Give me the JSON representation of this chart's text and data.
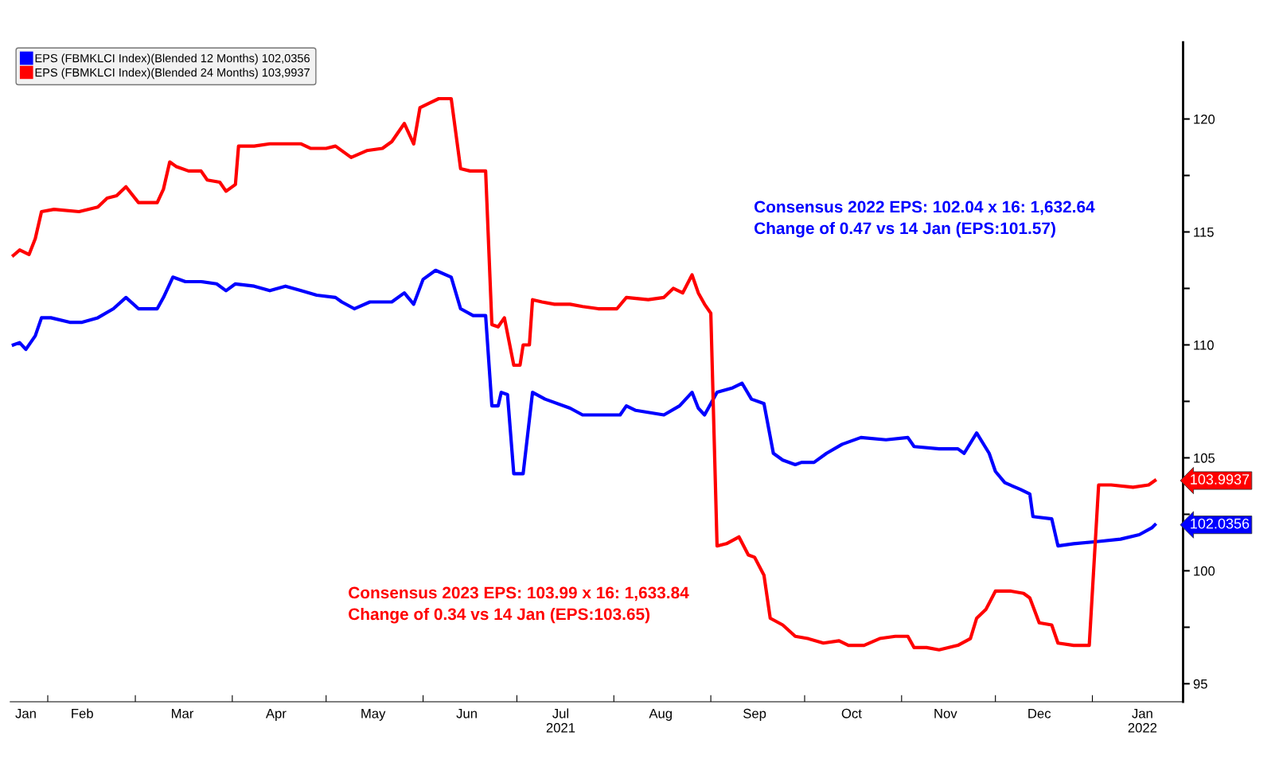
{
  "chart_data": {
    "type": "line",
    "legend": "top left",
    "grid": false,
    "marker": "none",
    "line_style": "solid",
    "xlim": [
      "2021-01-20",
      "2022-01-30"
    ],
    "ylim": [
      94.2,
      123.4
    ],
    "yticks": [
      95,
      {
        "value": 97.5,
        "label": null
      },
      100,
      {
        "value": 102.5,
        "label": null
      },
      105,
      {
        "value": 107.5,
        "label": null
      },
      110,
      {
        "value": 112.5,
        "label": null
      },
      115,
      {
        "value": 117.5,
        "label": null
      },
      120
    ],
    "xticks": [
      {
        "value": "2021-01-25",
        "label": "Jan"
      },
      {
        "value": "2021-02-01",
        "label": null
      },
      {
        "value": "2021-02-12",
        "label": "Feb"
      },
      {
        "value": "2021-03-01",
        "label": null
      },
      {
        "value": "2021-03-16",
        "label": "Mar"
      },
      {
        "value": "2021-04-01",
        "label": null
      },
      {
        "value": "2021-04-15",
        "label": "Apr"
      },
      {
        "value": "2021-05-01",
        "label": null
      },
      {
        "value": "2021-05-16",
        "label": "May"
      },
      {
        "value": "2021-06-01",
        "label": null
      },
      {
        "value": "2021-06-15",
        "label": "Jun"
      },
      {
        "value": "2021-07-01",
        "label": null
      },
      {
        "value": "2021-07-15",
        "label": "Jul\n2021"
      },
      {
        "value": "2021-08-01",
        "label": null
      },
      {
        "value": "2021-08-16",
        "label": "Aug"
      },
      {
        "value": "2021-09-01",
        "label": null
      },
      {
        "value": "2021-09-15",
        "label": "Sep"
      },
      {
        "value": "2021-10-01",
        "label": null
      },
      {
        "value": "2021-10-16",
        "label": "Oct"
      },
      {
        "value": "2021-11-01",
        "label": null
      },
      {
        "value": "2021-11-15",
        "label": "Nov"
      },
      {
        "value": "2021-12-01",
        "label": null
      },
      {
        "value": "2021-12-15",
        "label": "Dec"
      },
      {
        "value": "2022-01-01",
        "label": null
      },
      {
        "value": "2022-01-17",
        "label": "Jan\n2022"
      }
    ],
    "series": [
      {
        "name": "EPS (FBMKLCI Index)(Blended 12 Months) 102,0356",
        "color": "#0000ff",
        "x": [
          "2021-01-21",
          "2021-01-23",
          "2021-01-25",
          "2021-01-28",
          "2021-01-30",
          "2021-02-02",
          "2021-02-08",
          "2021-02-12",
          "2021-02-17",
          "2021-02-22",
          "2021-02-26",
          "2021-03-02",
          "2021-03-08",
          "2021-03-10",
          "2021-03-13",
          "2021-03-17",
          "2021-03-22",
          "2021-03-27",
          "2021-03-30",
          "2021-04-02",
          "2021-04-08",
          "2021-04-13",
          "2021-04-18",
          "2021-04-23",
          "2021-04-28",
          "2021-05-04",
          "2021-05-06",
          "2021-05-10",
          "2021-05-15",
          "2021-05-22",
          "2021-05-26",
          "2021-05-29",
          "2021-06-01",
          "2021-06-05",
          "2021-06-10",
          "2021-06-13",
          "2021-06-17",
          "2021-06-21",
          "2021-06-23",
          "2021-06-25",
          "2021-06-26",
          "2021-06-28",
          "2021-06-30",
          "2021-07-03",
          "2021-07-06",
          "2021-07-10",
          "2021-07-18",
          "2021-07-22",
          "2021-08-03",
          "2021-08-05",
          "2021-08-08",
          "2021-08-17",
          "2021-08-22",
          "2021-08-26",
          "2021-08-28",
          "2021-08-30",
          "2021-09-03",
          "2021-09-08",
          "2021-09-11",
          "2021-09-14",
          "2021-09-18",
          "2021-09-21",
          "2021-09-24",
          "2021-09-28",
          "2021-09-30",
          "2021-10-04",
          "2021-10-08",
          "2021-10-13",
          "2021-10-19",
          "2021-10-27",
          "2021-11-03",
          "2021-11-05",
          "2021-11-13",
          "2021-11-19",
          "2021-11-21",
          "2021-11-25",
          "2021-11-29",
          "2021-12-01",
          "2021-12-04",
          "2021-12-09",
          "2021-12-12",
          "2021-12-13",
          "2021-12-19",
          "2021-12-21",
          "2021-12-26",
          "2022-01-03",
          "2022-01-10",
          "2022-01-16",
          "2022-01-20",
          "2022-01-21"
        ],
        "values": [
          110.0,
          110.1,
          109.8,
          110.4,
          111.2,
          111.2,
          111.0,
          111.0,
          111.2,
          111.6,
          112.1,
          111.6,
          111.6,
          112.1,
          113.0,
          112.8,
          112.8,
          112.7,
          112.4,
          112.7,
          112.6,
          112.4,
          112.6,
          112.4,
          112.2,
          112.1,
          111.9,
          111.6,
          111.9,
          111.9,
          112.3,
          111.8,
          112.9,
          113.3,
          113.0,
          111.6,
          111.3,
          111.3,
          107.3,
          107.3,
          107.9,
          107.8,
          104.3,
          104.3,
          107.9,
          107.6,
          107.2,
          106.9,
          106.9,
          107.3,
          107.1,
          106.9,
          107.3,
          107.9,
          107.2,
          106.9,
          107.9,
          108.1,
          108.3,
          107.6,
          107.4,
          105.2,
          104.9,
          104.7,
          104.8,
          104.8,
          105.2,
          105.6,
          105.9,
          105.8,
          105.9,
          105.5,
          105.4,
          105.4,
          105.2,
          106.1,
          105.2,
          104.4,
          103.9,
          103.6,
          103.4,
          102.4,
          102.3,
          101.1,
          101.2,
          101.3,
          101.4,
          101.6,
          101.9,
          102.0356
        ]
      },
      {
        "name": "EPS (FBMKLCI Index)(Blended 24 Months) 103,9937",
        "color": "#ff0000",
        "x": [
          "2021-01-21",
          "2021-01-23",
          "2021-01-26",
          "2021-01-28",
          "2021-01-30",
          "2021-02-03",
          "2021-02-11",
          "2021-02-17",
          "2021-02-20",
          "2021-02-23",
          "2021-02-26",
          "2021-03-02",
          "2021-03-08",
          "2021-03-10",
          "2021-03-12",
          "2021-03-14",
          "2021-03-18",
          "2021-03-22",
          "2021-03-24",
          "2021-03-28",
          "2021-03-30",
          "2021-04-02",
          "2021-04-03",
          "2021-04-08",
          "2021-04-13",
          "2021-04-18",
          "2021-04-23",
          "2021-04-26",
          "2021-05-01",
          "2021-05-04",
          "2021-05-09",
          "2021-05-14",
          "2021-05-19",
          "2021-05-22",
          "2021-05-26",
          "2021-05-29",
          "2021-05-31",
          "2021-06-03",
          "2021-06-06",
          "2021-06-10",
          "2021-06-13",
          "2021-06-16",
          "2021-06-21",
          "2021-06-23",
          "2021-06-25",
          "2021-06-27",
          "2021-06-30",
          "2021-07-02",
          "2021-07-03",
          "2021-07-05",
          "2021-07-06",
          "2021-07-09",
          "2021-07-13",
          "2021-07-18",
          "2021-07-22",
          "2021-07-27",
          "2021-08-02",
          "2021-08-05",
          "2021-08-12",
          "2021-08-17",
          "2021-08-20",
          "2021-08-23",
          "2021-08-26",
          "2021-08-28",
          "2021-08-30",
          "2021-09-01",
          "2021-09-03",
          "2021-09-06",
          "2021-09-10",
          "2021-09-13",
          "2021-09-15",
          "2021-09-18",
          "2021-09-20",
          "2021-09-24",
          "2021-09-28",
          "2021-10-02",
          "2021-10-07",
          "2021-10-12",
          "2021-10-15",
          "2021-10-20",
          "2021-10-25",
          "2021-10-30",
          "2021-11-03",
          "2021-11-05",
          "2021-11-09",
          "2021-11-13",
          "2021-11-19",
          "2021-11-23",
          "2021-11-25",
          "2021-11-28",
          "2021-12-01",
          "2021-12-06",
          "2021-12-10",
          "2021-12-12",
          "2021-12-15",
          "2021-12-19",
          "2021-12-21",
          "2021-12-26",
          "2021-12-31",
          "2022-01-03",
          "2022-01-07",
          "2022-01-14",
          "2022-01-19",
          "2022-01-21"
        ],
        "values": [
          113.96,
          114.2,
          114.0,
          114.7,
          115.9,
          116.0,
          115.9,
          116.1,
          116.5,
          116.6,
          117.0,
          116.3,
          116.3,
          116.9,
          118.1,
          117.9,
          117.7,
          117.7,
          117.3,
          117.2,
          116.8,
          117.1,
          118.8,
          118.8,
          118.9,
          118.9,
          118.9,
          118.7,
          118.7,
          118.8,
          118.3,
          118.6,
          118.7,
          119.0,
          119.8,
          118.9,
          120.5,
          120.7,
          120.9,
          120.9,
          117.8,
          117.7,
          117.7,
          110.9,
          110.8,
          111.2,
          109.1,
          109.1,
          110.0,
          110.0,
          112.0,
          111.9,
          111.8,
          111.8,
          111.7,
          111.6,
          111.6,
          112.1,
          112.0,
          112.1,
          112.5,
          112.3,
          113.1,
          112.3,
          111.8,
          111.4,
          101.1,
          101.2,
          101.5,
          100.7,
          100.6,
          99.8,
          97.9,
          97.6,
          97.1,
          97.0,
          96.8,
          96.9,
          96.7,
          96.7,
          97.0,
          97.1,
          97.1,
          96.6,
          96.6,
          96.5,
          96.7,
          97.0,
          97.9,
          98.3,
          99.1,
          99.1,
          99.0,
          98.8,
          97.7,
          97.6,
          96.8,
          96.7,
          96.7,
          103.8,
          103.8,
          103.7,
          103.8,
          103.9937
        ]
      }
    ],
    "value_labels": [
      "102.0356",
      "103.9937"
    ],
    "annotations": [
      "Consensus 2022 EPS: 102.04 x 16: 1,632.64\nChange of 0.47 vs 14 Jan (EPS:101.57)",
      "Consensus 2023 EPS: 103.99 x 16: 1,633.84\nChange of 0.34 vs 14 Jan (EPS:103.65)"
    ]
  }
}
